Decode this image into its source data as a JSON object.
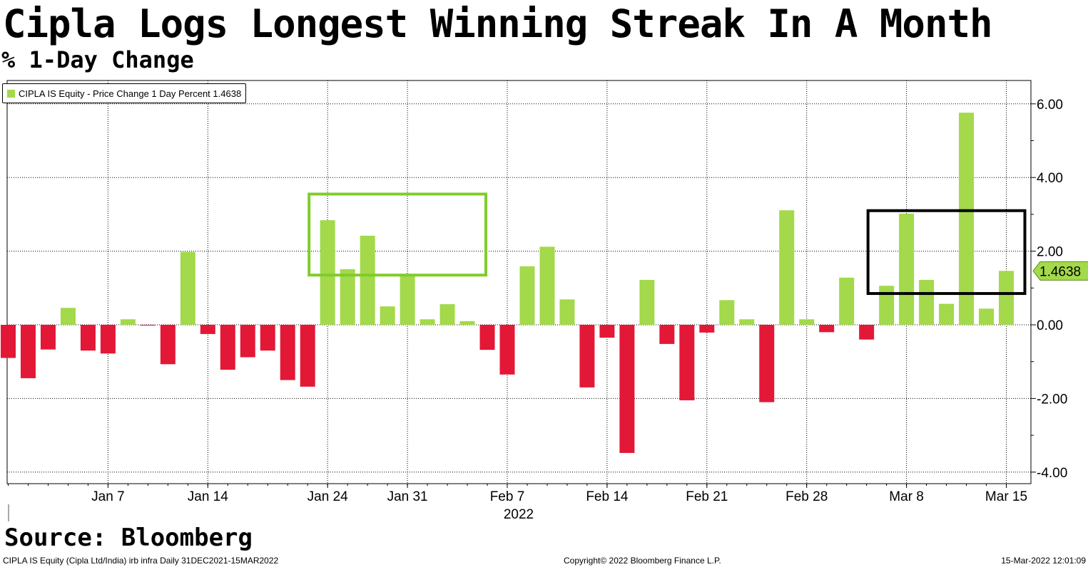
{
  "header": {
    "title": "Cipla Logs Longest Winning Streak In A Month",
    "subtitle": "% 1-Day Change"
  },
  "legend": {
    "label": "CIPLA IS Equity - Price Change 1 Day Percent 1.4638"
  },
  "source": "Source: Bloomberg",
  "footer": {
    "left": "CIPLA IS Equity (Cipla Ltd/India) irb infra  Daily 31DEC2021-15MAR2022",
    "center": "Copyright© 2022 Bloomberg Finance L.P.",
    "right": "15-Mar-2022 12:01:09"
  },
  "colors": {
    "positive": "#a3d94a",
    "negative": "#e31837",
    "highlight_green": "#7fcc2b",
    "highlight_black": "#000000"
  },
  "chart_data": {
    "type": "bar",
    "title": "Cipla Logs Longest Winning Streak In A Month",
    "subtitle": "% 1-Day Change",
    "ylabel": "% 1-Day Change",
    "xlabel": "",
    "year_label": "2022",
    "ylim": [
      -4.4,
      6.6
    ],
    "yticks": [
      -4.0,
      -2.0,
      0.0,
      2.0,
      4.0,
      6.0
    ],
    "ytick_labels": [
      "-4.00",
      "-2.00",
      "0.00",
      "2.00",
      "4.00",
      "6.00"
    ],
    "grid": true,
    "legend_position": "top-left",
    "series": [
      {
        "name": "CIPLA IS Equity - Price Change 1 Day Percent",
        "last_value": "1.4638",
        "values": [
          -0.9,
          -1.45,
          -0.67,
          0.46,
          -0.7,
          -0.78,
          0.15,
          -0.02,
          -1.07,
          1.98,
          -0.25,
          -1.22,
          -0.88,
          -0.7,
          -1.5,
          -1.68,
          2.84,
          1.51,
          2.42,
          0.5,
          1.38,
          0.15,
          0.56,
          0.1,
          -0.68,
          -1.35,
          1.59,
          2.12,
          0.69,
          -1.7,
          -0.35,
          -3.48,
          1.22,
          -0.52,
          -2.05,
          -0.21,
          0.67,
          0.15,
          -2.1,
          3.11,
          0.15,
          -0.2,
          1.28,
          -0.4,
          1.06,
          3.02,
          1.22,
          0.57,
          5.76,
          0.44,
          1.4638
        ]
      }
    ],
    "dates": [
      "2021-12-31",
      "2022-01-03",
      "2022-01-04",
      "2022-01-05",
      "2022-01-06",
      "2022-01-07",
      "2022-01-10",
      "2022-01-11",
      "2022-01-12",
      "2022-01-13",
      "2022-01-14",
      "2022-01-17",
      "2022-01-18",
      "2022-01-19",
      "2022-01-20",
      "2022-01-21",
      "2022-01-24",
      "2022-01-25",
      "2022-01-27",
      "2022-01-28",
      "2022-01-31",
      "2022-02-01",
      "2022-02-02",
      "2022-02-03",
      "2022-02-04",
      "2022-02-07",
      "2022-02-08",
      "2022-02-09",
      "2022-02-10",
      "2022-02-11",
      "2022-02-14",
      "2022-02-15",
      "2022-02-16",
      "2022-02-17",
      "2022-02-18",
      "2022-02-21",
      "2022-02-22",
      "2022-02-23",
      "2022-02-24",
      "2022-02-25",
      "2022-02-28",
      "2022-03-02",
      "2022-03-03",
      "2022-03-04",
      "2022-03-07",
      "2022-03-08",
      "2022-03-09",
      "2022-03-10",
      "2022-03-11",
      "2022-03-14",
      "2022-03-15"
    ],
    "xtick_labels": [
      "Jan 7",
      "Jan 14",
      "Jan 24",
      "Jan 31",
      "Feb 7",
      "Feb 14",
      "Feb 21",
      "Feb 28",
      "Mar 8",
      "Mar 15"
    ],
    "xtick_bar_index": [
      5,
      10,
      16,
      20,
      25,
      30,
      35,
      40,
      45,
      50
    ],
    "annotations": [
      {
        "type": "box",
        "color": "green",
        "from_bar": 15,
        "to_bar": 24,
        "y_range": [
          1.35,
          3.55
        ]
      },
      {
        "type": "box",
        "color": "black",
        "from_bar": 43,
        "to_bar": 51,
        "y_range": [
          0.85,
          3.1
        ]
      }
    ]
  }
}
